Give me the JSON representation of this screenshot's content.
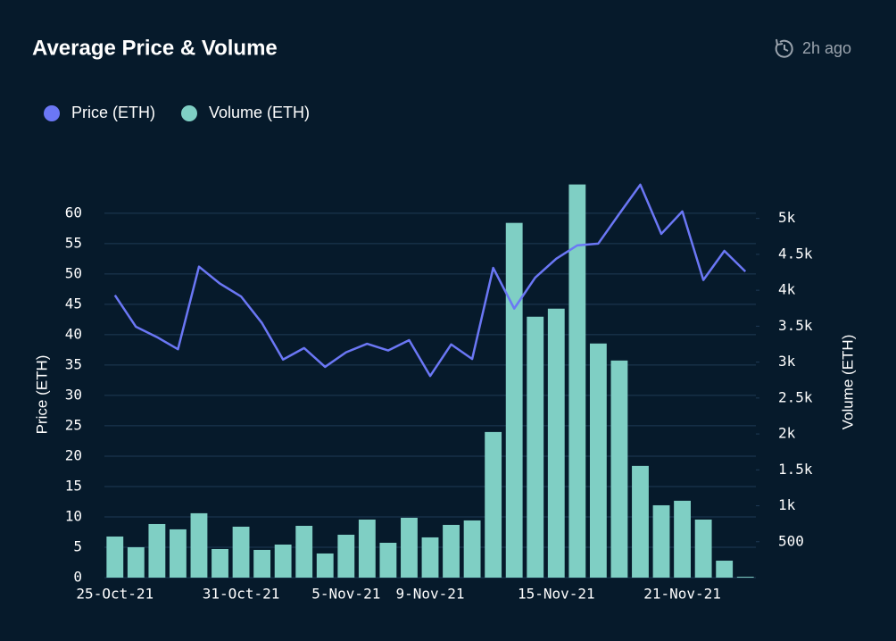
{
  "header": {
    "updated": "2h ago"
  },
  "chart_data": {
    "type": "bar-line",
    "title": "Average Price & Volume",
    "categories": [
      "25-Oct-21",
      null,
      null,
      null,
      null,
      null,
      "31-Oct-21",
      null,
      null,
      null,
      null,
      "5-Nov-21",
      null,
      null,
      null,
      "9-Nov-21",
      null,
      null,
      null,
      null,
      null,
      "15-Nov-21",
      null,
      null,
      null,
      null,
      null,
      "21-Nov-21",
      null,
      null,
      null
    ],
    "series": [
      {
        "name": "Price (ETH)",
        "color": "#6b77f5",
        "type": "line",
        "axis": "y",
        "values": [
          46.5,
          41.3,
          39.6,
          37.6,
          51.2,
          48.4,
          46.3,
          41.9,
          35.9,
          37.8,
          34.7,
          37.1,
          38.5,
          37.4,
          39.1,
          33.2,
          38.4,
          36.0,
          51.0,
          44.3,
          49.4,
          52.5,
          54.7,
          55.0,
          59.9,
          64.7,
          56.6,
          60.3,
          49.0,
          53.8,
          50.4
        ]
      },
      {
        "name": "Volume (ETH)",
        "color": "#7fcfc4",
        "type": "bar",
        "axis": "y2",
        "values": [
          572,
          423,
          746,
          672,
          896,
          398,
          709,
          386,
          460,
          721,
          336,
          597,
          808,
          485,
          833,
          560,
          734,
          796,
          2027,
          4938,
          3632,
          3744,
          5473,
          3259,
          3022,
          1555,
          1007,
          1070,
          808,
          236,
          12
        ]
      }
    ],
    "ylabel": "Price (ETH)",
    "y2label": "Volume (ETH)",
    "ylim": [
      0,
      66
    ],
    "yticks": [
      0,
      5,
      10,
      15,
      20,
      25,
      30,
      35,
      40,
      45,
      50,
      55,
      60
    ],
    "y2lim": [
      0,
      5580
    ],
    "y2ticks": [
      500,
      {
        "value": 1000,
        "label": "1k"
      },
      {
        "value": 1500,
        "label": "1.5k"
      },
      {
        "value": 2000,
        "label": "2k"
      },
      {
        "value": 2500,
        "label": "2.5k"
      },
      {
        "value": 3000,
        "label": "3k"
      },
      {
        "value": 3500,
        "label": "3.5k"
      },
      {
        "value": 4000,
        "label": "4k"
      },
      {
        "value": 4500,
        "label": "4.5k"
      },
      {
        "value": 5000,
        "label": "5k"
      }
    ],
    "grid": true,
    "legend": "top-left"
  }
}
